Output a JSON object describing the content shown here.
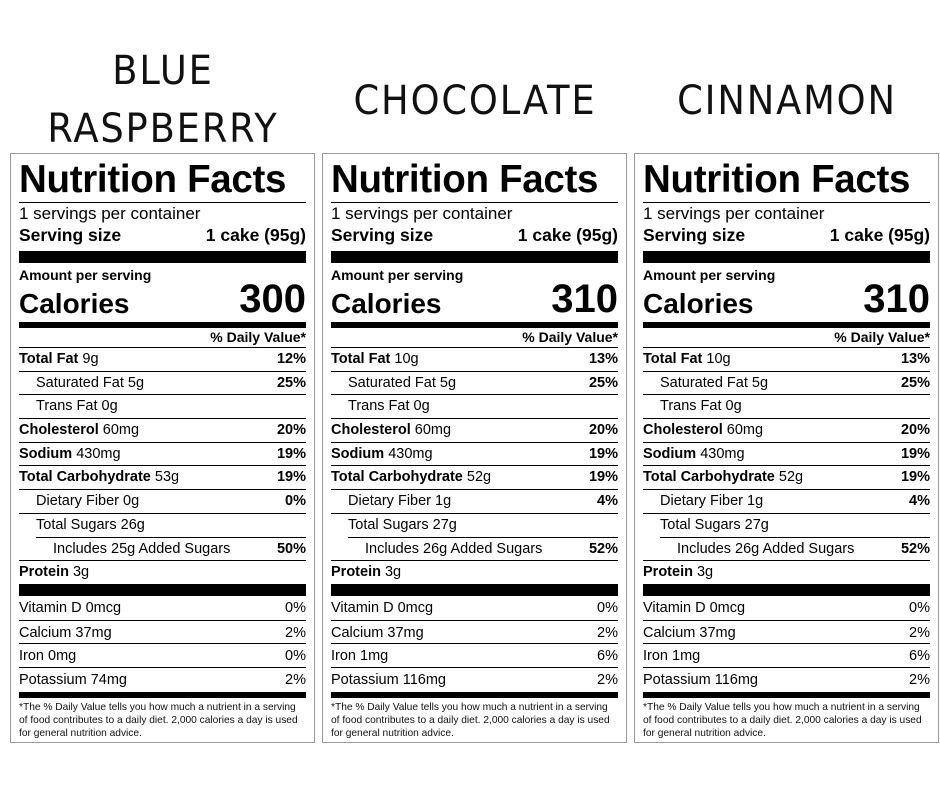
{
  "labels": [
    {
      "flavor": "BLUE RASPBERRY",
      "flavor_lines": [
        "BLUE",
        "RASPBERRY"
      ],
      "title": "Nutrition Facts",
      "servings_per_container": "1 servings per container",
      "serving_size_label": "Serving size",
      "serving_size_value": "1 cake (95g)",
      "amount_per_serving": "Amount per serving",
      "calories_label": "Calories",
      "calories": "300",
      "daily_value_header": "% Daily Value*",
      "nutrients": [
        {
          "name": "Total Fat",
          "amount": "9g",
          "dv": "12%",
          "bold": true,
          "indent": 0
        },
        {
          "name": "Saturated Fat",
          "amount": "5g",
          "dv": "25%",
          "bold": false,
          "indent": 1
        },
        {
          "name": "Trans Fat",
          "amount": "0g",
          "dv": "",
          "bold": false,
          "indent": 1
        },
        {
          "name": "Cholesterol",
          "amount": "60mg",
          "dv": "20%",
          "bold": true,
          "indent": 0
        },
        {
          "name": "Sodium",
          "amount": "430mg",
          "dv": "19%",
          "bold": true,
          "indent": 0
        },
        {
          "name": "Total Carbohydrate",
          "amount": "53g",
          "dv": "19%",
          "bold": true,
          "indent": 0
        },
        {
          "name": "Dietary Fiber",
          "amount": "0g",
          "dv": "0%",
          "bold": false,
          "indent": 1
        },
        {
          "name": "Total Sugars",
          "amount": "26g",
          "dv": "",
          "bold": false,
          "indent": 1
        },
        {
          "name": "Includes 25g Added Sugars",
          "amount": "",
          "dv": "50%",
          "bold": false,
          "indent": 2
        },
        {
          "name": "Protein",
          "amount": "3g",
          "dv": "",
          "bold": true,
          "indent": 0
        }
      ],
      "vitamins": [
        {
          "name": "Vitamin D 0mcg",
          "dv": "0%"
        },
        {
          "name": "Calcium 37mg",
          "dv": "2%"
        },
        {
          "name": "Iron 0mg",
          "dv": "0%"
        },
        {
          "name": "Potassium 74mg",
          "dv": "2%"
        }
      ],
      "footnote": "*The % Daily Value tells you how much a nutrient in a serving of food contributes to a daily diet. 2,000 calories a day is used for general nutrition advice."
    },
    {
      "flavor": "CHOCOLATE",
      "flavor_lines": [
        "CHOCOLATE"
      ],
      "title": "Nutrition Facts",
      "servings_per_container": "1 servings per container",
      "serving_size_label": "Serving size",
      "serving_size_value": "1 cake (95g)",
      "amount_per_serving": "Amount per serving",
      "calories_label": "Calories",
      "calories": "310",
      "daily_value_header": "% Daily Value*",
      "nutrients": [
        {
          "name": "Total Fat",
          "amount": "10g",
          "dv": "13%",
          "bold": true,
          "indent": 0
        },
        {
          "name": "Saturated Fat",
          "amount": "5g",
          "dv": "25%",
          "bold": false,
          "indent": 1
        },
        {
          "name": "Trans Fat",
          "amount": "0g",
          "dv": "",
          "bold": false,
          "indent": 1
        },
        {
          "name": "Cholesterol",
          "amount": "60mg",
          "dv": "20%",
          "bold": true,
          "indent": 0
        },
        {
          "name": "Sodium",
          "amount": "430mg",
          "dv": "19%",
          "bold": true,
          "indent": 0
        },
        {
          "name": "Total Carbohydrate",
          "amount": "52g",
          "dv": "19%",
          "bold": true,
          "indent": 0
        },
        {
          "name": "Dietary Fiber",
          "amount": "1g",
          "dv": "4%",
          "bold": false,
          "indent": 1
        },
        {
          "name": "Total Sugars",
          "amount": "27g",
          "dv": "",
          "bold": false,
          "indent": 1
        },
        {
          "name": "Includes 26g Added Sugars",
          "amount": "",
          "dv": "52%",
          "bold": false,
          "indent": 2
        },
        {
          "name": "Protein",
          "amount": "3g",
          "dv": "",
          "bold": true,
          "indent": 0
        }
      ],
      "vitamins": [
        {
          "name": "Vitamin D 0mcg",
          "dv": "0%"
        },
        {
          "name": "Calcium 37mg",
          "dv": "2%"
        },
        {
          "name": "Iron 1mg",
          "dv": "6%"
        },
        {
          "name": "Potassium 116mg",
          "dv": "2%"
        }
      ],
      "footnote": "*The % Daily Value tells you how much a nutrient in a serving of food contributes to a daily diet. 2,000 calories a day is used for general nutrition advice."
    },
    {
      "flavor": "CINNAMON",
      "flavor_lines": [
        "CINNAMON"
      ],
      "title": "Nutrition Facts",
      "servings_per_container": "1 servings per container",
      "serving_size_label": "Serving size",
      "serving_size_value": "1 cake (95g)",
      "amount_per_serving": "Amount per serving",
      "calories_label": "Calories",
      "calories": "310",
      "daily_value_header": "% Daily Value*",
      "nutrients": [
        {
          "name": "Total Fat",
          "amount": "10g",
          "dv": "13%",
          "bold": true,
          "indent": 0
        },
        {
          "name": "Saturated Fat",
          "amount": "5g",
          "dv": "25%",
          "bold": false,
          "indent": 1
        },
        {
          "name": "Trans Fat",
          "amount": "0g",
          "dv": "",
          "bold": false,
          "indent": 1
        },
        {
          "name": "Cholesterol",
          "amount": "60mg",
          "dv": "20%",
          "bold": true,
          "indent": 0
        },
        {
          "name": "Sodium",
          "amount": "430mg",
          "dv": "19%",
          "bold": true,
          "indent": 0
        },
        {
          "name": "Total Carbohydrate",
          "amount": "52g",
          "dv": "19%",
          "bold": true,
          "indent": 0
        },
        {
          "name": "Dietary Fiber",
          "amount": "1g",
          "dv": "4%",
          "bold": false,
          "indent": 1
        },
        {
          "name": "Total Sugars",
          "amount": "27g",
          "dv": "",
          "bold": false,
          "indent": 1
        },
        {
          "name": "Includes 26g Added Sugars",
          "amount": "",
          "dv": "52%",
          "bold": false,
          "indent": 2
        },
        {
          "name": "Protein",
          "amount": "3g",
          "dv": "",
          "bold": true,
          "indent": 0
        }
      ],
      "vitamins": [
        {
          "name": "Vitamin D 0mcg",
          "dv": "0%"
        },
        {
          "name": "Calcium 37mg",
          "dv": "2%"
        },
        {
          "name": "Iron 1mg",
          "dv": "6%"
        },
        {
          "name": "Potassium 116mg",
          "dv": "2%"
        }
      ],
      "footnote": "*The % Daily Value tells you how much a nutrient in a serving of food contributes to a daily diet. 2,000 calories a day is used for general nutrition advice."
    }
  ]
}
